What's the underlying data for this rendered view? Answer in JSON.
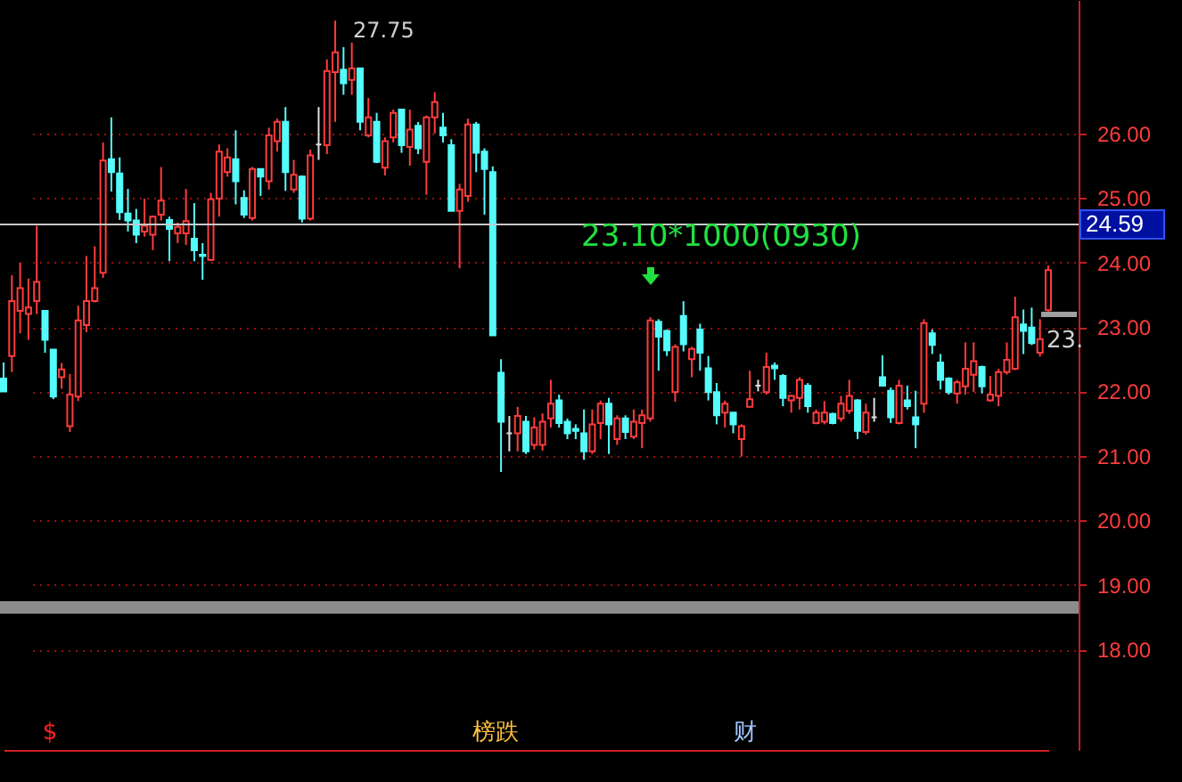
{
  "chart_data": {
    "type": "candlestick",
    "categories": [
      null,
      null,
      null,
      null,
      null,
      null,
      null,
      null,
      null,
      null,
      null,
      null,
      null,
      null,
      null,
      null,
      null,
      null,
      null,
      null,
      null,
      null,
      null,
      null,
      null,
      null,
      null,
      null,
      null,
      null,
      null,
      null,
      null,
      null,
      null,
      null,
      null,
      null,
      null,
      null,
      null,
      null,
      null,
      null,
      null,
      null,
      null,
      null,
      null,
      null,
      null,
      null,
      null,
      null,
      null,
      null,
      null,
      null,
      null,
      null,
      null,
      null,
      null,
      null,
      null,
      null,
      null,
      null,
      null,
      null,
      null,
      null,
      null,
      null,
      null,
      null,
      null,
      null,
      null,
      null,
      null,
      null,
      null,
      null,
      null,
      null,
      null,
      null,
      null,
      null,
      null,
      null,
      null,
      null,
      null,
      null,
      null,
      null,
      null,
      null,
      null,
      null,
      null,
      null,
      null,
      null,
      null,
      null,
      null,
      null,
      null,
      null,
      null,
      null,
      null,
      null,
      null,
      null,
      null,
      null,
      null,
      null,
      null,
      null,
      null,
      null,
      null
    ],
    "ohlc": [
      [
        22.2,
        22.45,
        22.0,
        22.0
      ],
      [
        22.55,
        23.8,
        22.3,
        23.4
      ],
      [
        23.25,
        24.0,
        22.9,
        23.6
      ],
      [
        23.2,
        23.75,
        22.8,
        23.3
      ],
      [
        23.4,
        24.57,
        23.2,
        23.7
      ],
      [
        23.25,
        23.25,
        22.6,
        22.8
      ],
      [
        22.65,
        22.65,
        21.88,
        21.92
      ],
      [
        22.22,
        22.44,
        22.04,
        22.34
      ],
      [
        21.46,
        22.27,
        21.37,
        21.95
      ],
      [
        21.92,
        23.33,
        21.85,
        23.1
      ],
      [
        23.03,
        24.1,
        22.92,
        23.4
      ],
      [
        23.4,
        24.25,
        23.38,
        23.6
      ],
      [
        23.84,
        25.86,
        23.76,
        25.58
      ],
      [
        25.6,
        26.25,
        25.1,
        25.4
      ],
      [
        25.38,
        25.63,
        24.66,
        24.78
      ],
      [
        24.76,
        25.14,
        24.48,
        24.65
      ],
      [
        24.65,
        24.83,
        24.3,
        24.43
      ],
      [
        24.48,
        24.99,
        24.4,
        24.57
      ],
      [
        24.43,
        24.72,
        24.19,
        24.71
      ],
      [
        24.74,
        25.48,
        24.65,
        24.96
      ],
      [
        24.66,
        24.71,
        24.02,
        24.52
      ],
      [
        24.45,
        24.62,
        24.3,
        24.55
      ],
      [
        24.45,
        25.14,
        24.27,
        24.64
      ],
      [
        24.37,
        24.92,
        24.02,
        24.19
      ],
      [
        24.12,
        24.3,
        23.73,
        24.1
      ],
      [
        24.04,
        25.08,
        24.02,
        24.98
      ],
      [
        24.99,
        25.83,
        24.71,
        25.72
      ],
      [
        25.4,
        25.77,
        25.33,
        25.63
      ],
      [
        25.6,
        26.05,
        24.9,
        25.26
      ],
      [
        25.0,
        25.12,
        24.69,
        24.74
      ],
      [
        24.69,
        25.48,
        24.65,
        25.45
      ],
      [
        25.45,
        25.45,
        25.03,
        25.33
      ],
      [
        25.26,
        26.09,
        25.13,
        25.97
      ],
      [
        25.88,
        26.23,
        25.72,
        26.18
      ],
      [
        26.18,
        26.41,
        25.11,
        25.4
      ],
      [
        25.13,
        25.59,
        25.08,
        25.36
      ],
      [
        25.33,
        25.35,
        24.62,
        24.68
      ],
      [
        24.68,
        25.75,
        24.65,
        25.66
      ],
      [
        25.83,
        26.41,
        25.59,
        25.83
      ],
      [
        25.82,
        27.15,
        25.68,
        26.97
      ],
      [
        26.95,
        27.75,
        26.18,
        27.26
      ],
      [
        26.99,
        27.34,
        26.6,
        26.78
      ],
      [
        26.83,
        27.41,
        26.6,
        27.01
      ],
      [
        27.01,
        27.01,
        26.05,
        26.18
      ],
      [
        25.97,
        26.55,
        25.94,
        26.25
      ],
      [
        26.18,
        26.32,
        25.54,
        25.56
      ],
      [
        25.47,
        25.94,
        25.35,
        25.88
      ],
      [
        25.94,
        26.37,
        25.86,
        26.32
      ],
      [
        26.37,
        26.37,
        25.7,
        25.82
      ],
      [
        25.79,
        26.37,
        25.5,
        26.06
      ],
      [
        26.12,
        26.18,
        25.68,
        25.77
      ],
      [
        25.56,
        26.28,
        25.05,
        26.25
      ],
      [
        26.25,
        26.64,
        26.0,
        26.49
      ],
      [
        26.09,
        26.32,
        25.86,
        25.97
      ],
      [
        25.82,
        25.91,
        24.8,
        24.8
      ],
      [
        24.8,
        25.22,
        23.91,
        25.13
      ],
      [
        25.03,
        26.23,
        24.94,
        26.14
      ],
      [
        26.14,
        26.18,
        25.4,
        25.7
      ],
      [
        25.72,
        25.77,
        24.74,
        25.45
      ],
      [
        25.4,
        25.49,
        22.87,
        22.87
      ],
      [
        22.29,
        22.5,
        20.75,
        21.53
      ],
      [
        21.35,
        21.62,
        21.07,
        21.35
      ],
      [
        21.35,
        21.76,
        21.07,
        21.62
      ],
      [
        21.53,
        21.62,
        21.03,
        21.07
      ],
      [
        21.17,
        21.6,
        21.1,
        21.44
      ],
      [
        21.17,
        21.66,
        21.08,
        21.53
      ],
      [
        21.58,
        22.18,
        21.44,
        21.81
      ],
      [
        21.86,
        21.95,
        21.44,
        21.51
      ],
      [
        21.53,
        21.58,
        21.26,
        21.35
      ],
      [
        21.42,
        21.49,
        21.26,
        21.39
      ],
      [
        21.35,
        21.72,
        20.94,
        21.07
      ],
      [
        21.07,
        21.72,
        21.03,
        21.49
      ],
      [
        21.51,
        21.86,
        21.26,
        21.81
      ],
      [
        21.81,
        21.9,
        21.03,
        21.49
      ],
      [
        21.26,
        21.63,
        21.17,
        21.58
      ],
      [
        21.58,
        21.63,
        21.26,
        21.37
      ],
      [
        21.3,
        21.72,
        21.26,
        21.53
      ],
      [
        21.51,
        21.72,
        21.12,
        21.63
      ],
      [
        21.58,
        23.15,
        21.53,
        23.1
      ],
      [
        23.08,
        23.12,
        22.32,
        22.85
      ],
      [
        22.94,
        22.96,
        22.55,
        22.64
      ],
      [
        21.99,
        22.73,
        21.84,
        22.69
      ],
      [
        23.17,
        23.4,
        22.62,
        22.73
      ],
      [
        22.5,
        22.69,
        22.22,
        22.66
      ],
      [
        22.96,
        23.05,
        22.32,
        22.6
      ],
      [
        22.36,
        22.55,
        21.86,
        21.99
      ],
      [
        21.99,
        22.13,
        21.49,
        21.63
      ],
      [
        21.67,
        21.86,
        21.44,
        21.81
      ],
      [
        21.67,
        21.67,
        21.35,
        21.49
      ],
      [
        21.26,
        21.49,
        20.99,
        21.46
      ],
      [
        21.76,
        22.32,
        21.76,
        21.88
      ],
      [
        22.09,
        22.18,
        22.0,
        22.09
      ],
      [
        21.99,
        22.6,
        21.95,
        22.38
      ],
      [
        22.4,
        22.45,
        22.18,
        22.36
      ],
      [
        22.24,
        22.27,
        21.77,
        21.9
      ],
      [
        21.86,
        21.95,
        21.67,
        21.93
      ],
      [
        21.9,
        22.22,
        21.72,
        22.18
      ],
      [
        22.09,
        22.13,
        21.67,
        21.77
      ],
      [
        21.51,
        21.72,
        21.49,
        21.67
      ],
      [
        21.53,
        21.85,
        21.49,
        21.67
      ],
      [
        21.65,
        21.67,
        21.49,
        21.51
      ],
      [
        21.58,
        21.93,
        21.53,
        21.81
      ],
      [
        21.7,
        22.18,
        21.65,
        21.93
      ],
      [
        21.86,
        21.88,
        21.26,
        21.39
      ],
      [
        21.37,
        21.81,
        21.33,
        21.67
      ],
      [
        21.6,
        21.9,
        21.53,
        21.6
      ],
      [
        22.22,
        22.56,
        22.09,
        22.09
      ],
      [
        22.01,
        22.06,
        21.51,
        21.6
      ],
      [
        21.51,
        22.18,
        21.49,
        22.09
      ],
      [
        21.86,
        22.09,
        21.72,
        21.77
      ],
      [
        21.6,
        22.01,
        21.12,
        21.49
      ],
      [
        21.81,
        23.12,
        21.67,
        23.06
      ],
      [
        22.9,
        22.96,
        22.58,
        22.72
      ],
      [
        22.45,
        22.58,
        22.03,
        22.18
      ],
      [
        22.2,
        22.22,
        21.95,
        21.99
      ],
      [
        21.97,
        22.18,
        21.81,
        22.14
      ],
      [
        22.08,
        22.76,
        21.95,
        22.35
      ],
      [
        22.26,
        22.76,
        21.99,
        22.47
      ],
      [
        22.38,
        22.4,
        21.97,
        22.08
      ],
      [
        21.86,
        22.24,
        21.84,
        21.95
      ],
      [
        21.93,
        22.35,
        21.77,
        22.3
      ],
      [
        22.3,
        22.76,
        22.26,
        22.49
      ],
      [
        22.35,
        23.47,
        22.33,
        23.15
      ],
      [
        23.04,
        23.27,
        22.58,
        22.94
      ],
      [
        22.99,
        23.3,
        22.72,
        22.75
      ],
      [
        22.6,
        23.12,
        22.54,
        22.81
      ],
      [
        23.26,
        23.95,
        23.24,
        23.88
      ]
    ],
    "colors": [
      "#54fcfc",
      "#ff3c3c",
      "#ff3c3c",
      "#ff3c3c",
      "#ff3c3c",
      "#54fcfc",
      "#54fcfc",
      "#ff3c3c",
      "#ff3c3c",
      "#ff3c3c",
      "#ff3c3c",
      "#ff3c3c",
      "#ff3c3c",
      "#54fcfc",
      "#54fcfc",
      "#54fcfc",
      "#54fcfc",
      "#ff3c3c",
      "#ff3c3c",
      "#ff3c3c",
      "#54fcfc",
      "#ff3c3c",
      "#ff3c3c",
      "#54fcfc",
      "#54fcfc",
      "#ff3c3c",
      "#ff3c3c",
      "#ff3c3c",
      "#54fcfc",
      "#54fcfc",
      "#ff3c3c",
      "#54fcfc",
      "#ff3c3c",
      "#ff3c3c",
      "#54fcfc",
      "#ff3c3c",
      "#54fcfc",
      "#ff3c3c",
      "#e0e0e0",
      "#ff3c3c",
      "#ff3c3c",
      "#54fcfc",
      "#ff3c3c",
      "#54fcfc",
      "#ff3c3c",
      "#54fcfc",
      "#ff3c3c",
      "#ff3c3c",
      "#54fcfc",
      "#ff3c3c",
      "#54fcfc",
      "#ff3c3c",
      "#ff3c3c",
      "#54fcfc",
      "#54fcfc",
      "#ff3c3c",
      "#ff3c3c",
      "#54fcfc",
      "#54fcfc",
      "#54fcfc",
      "#54fcfc",
      "#e0e0e0",
      "#ff3c3c",
      "#54fcfc",
      "#ff3c3c",
      "#ff3c3c",
      "#ff3c3c",
      "#54fcfc",
      "#54fcfc",
      "#54fcfc",
      "#54fcfc",
      "#ff3c3c",
      "#ff3c3c",
      "#54fcfc",
      "#ff3c3c",
      "#54fcfc",
      "#ff3c3c",
      "#ff3c3c",
      "#ff3c3c",
      "#54fcfc",
      "#54fcfc",
      "#ff3c3c",
      "#54fcfc",
      "#ff3c3c",
      "#54fcfc",
      "#54fcfc",
      "#54fcfc",
      "#ff3c3c",
      "#54fcfc",
      "#ff3c3c",
      "#ff3c3c",
      "#e0e0e0",
      "#ff3c3c",
      "#54fcfc",
      "#54fcfc",
      "#ff3c3c",
      "#ff3c3c",
      "#54fcfc",
      "#ff3c3c",
      "#ff3c3c",
      "#54fcfc",
      "#ff3c3c",
      "#ff3c3c",
      "#54fcfc",
      "#ff3c3c",
      "#e0e0e0",
      "#54fcfc",
      "#54fcfc",
      "#ff3c3c",
      "#54fcfc",
      "#54fcfc",
      "#ff3c3c",
      "#54fcfc",
      "#54fcfc",
      "#54fcfc",
      "#ff3c3c",
      "#ff3c3c",
      "#ff3c3c",
      "#54fcfc",
      "#ff3c3c",
      "#ff3c3c",
      "#ff3c3c",
      "#ff3c3c",
      "#54fcfc",
      "#54fcfc",
      "#ff3c3c",
      "#ff3c3c"
    ],
    "ylim": [
      16.44,
      28.07
    ],
    "yticks": [
      {
        "value": 18,
        "label": "18.00"
      },
      {
        "value": 19,
        "label": "19.00"
      },
      {
        "value": 20,
        "label": "20.00"
      },
      {
        "value": 21,
        "label": "21.00"
      },
      {
        "value": 22,
        "label": "22.00"
      },
      {
        "value": 23,
        "label": "23.00"
      },
      {
        "value": 24,
        "label": "24.00"
      },
      {
        "value": 25,
        "label": "25.00"
      },
      {
        "value": 26,
        "label": "26.00"
      }
    ],
    "grid": "y",
    "tick_labels": "y",
    "ref_lines": [
      {
        "axis": "y",
        "value": 24.59,
        "label": "24.59",
        "color": "#c8c8c8"
      },
      {
        "axis": "y",
        "value": 18.65,
        "color": "#8c8c8c"
      }
    ],
    "annotations": [
      "27.75",
      "23.10*1000(0930)",
      "23.",
      "$",
      "榜跌",
      "财"
    ]
  }
}
